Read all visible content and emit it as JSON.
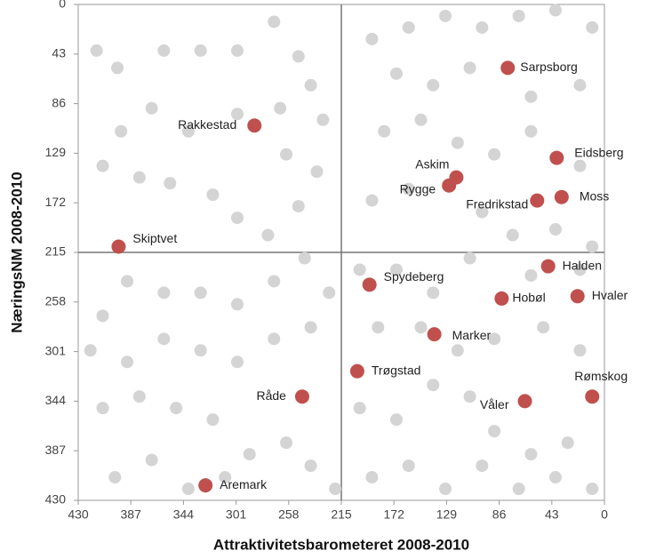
{
  "chart_data": {
    "type": "scatter",
    "xlabel": "Attraktivitetsbarometeret 2008-2010",
    "ylabel": "NæringsNM 2008-2010",
    "xlim": [
      430,
      0
    ],
    "ylim": [
      0,
      430
    ],
    "xticks": [
      430,
      387,
      344,
      301,
      258,
      215,
      172,
      129,
      86,
      43,
      0
    ],
    "yticks": [
      0,
      43,
      86,
      129,
      172,
      215,
      258,
      301,
      344,
      387,
      430
    ],
    "xline": 215,
    "yline": 215,
    "series": [
      {
        "color": "#d4d4d4",
        "x": [
          415,
          398,
          360,
          330,
          300,
          270,
          250,
          240,
          230,
          265,
          300,
          340,
          370,
          395,
          410,
          380,
          355,
          320,
          300,
          275,
          250,
          235,
          260,
          245,
          270,
          300,
          330,
          360,
          390,
          410,
          420,
          390,
          360,
          330,
          300,
          270,
          240,
          225,
          410,
          380,
          350,
          320,
          290,
          260,
          240,
          220,
          400,
          370,
          340,
          310,
          190,
          160,
          130,
          100,
          70,
          40,
          10,
          170,
          140,
          110,
          60,
          20,
          180,
          150,
          120,
          90,
          60,
          20,
          190,
          160,
          100,
          75,
          40,
          10,
          200,
          170,
          140,
          110,
          60,
          20,
          185,
          150,
          120,
          90,
          50,
          20,
          200,
          170,
          140,
          110,
          90,
          60,
          30,
          10,
          190,
          160,
          130,
          100,
          70,
          40
        ],
        "y": [
          40,
          55,
          40,
          40,
          40,
          15,
          45,
          70,
          100,
          90,
          95,
          110,
          90,
          110,
          140,
          150,
          155,
          165,
          185,
          200,
          175,
          145,
          130,
          220,
          240,
          260,
          250,
          250,
          240,
          270,
          300,
          310,
          290,
          300,
          310,
          290,
          280,
          250,
          350,
          340,
          350,
          360,
          390,
          380,
          400,
          420,
          410,
          395,
          420,
          410,
          30,
          20,
          10,
          20,
          10,
          5,
          20,
          60,
          70,
          55,
          80,
          70,
          110,
          100,
          120,
          130,
          110,
          140,
          170,
          160,
          180,
          200,
          195,
          210,
          230,
          230,
          250,
          220,
          235,
          230,
          280,
          280,
          300,
          290,
          280,
          300,
          350,
          360,
          330,
          340,
          370,
          390,
          380,
          420,
          410,
          400,
          420,
          400,
          420,
          410
        ]
      },
      {
        "color": "#c0504d",
        "labels": [
          "Sarpsborg",
          "Rakkestad",
          "Eidsberg",
          "Askim",
          "Rygge",
          "Fredrikstad",
          "Moss",
          "Skiptvet",
          "Halden",
          "Spydeberg",
          "Hobøl",
          "Hvaler",
          "Marker",
          "Trøgstad",
          "Råde",
          "Våler",
          "Rømskog",
          "Aremark"
        ],
        "x": [
          79,
          286,
          39,
          121,
          127,
          55,
          35,
          397,
          46,
          192,
          84,
          22,
          139,
          202,
          247,
          65,
          10,
          326
        ],
        "y": [
          55,
          105,
          133,
          150,
          157,
          170,
          167,
          210,
          227,
          243,
          255,
          253,
          286,
          318,
          340,
          344,
          340,
          417
        ]
      }
    ]
  }
}
